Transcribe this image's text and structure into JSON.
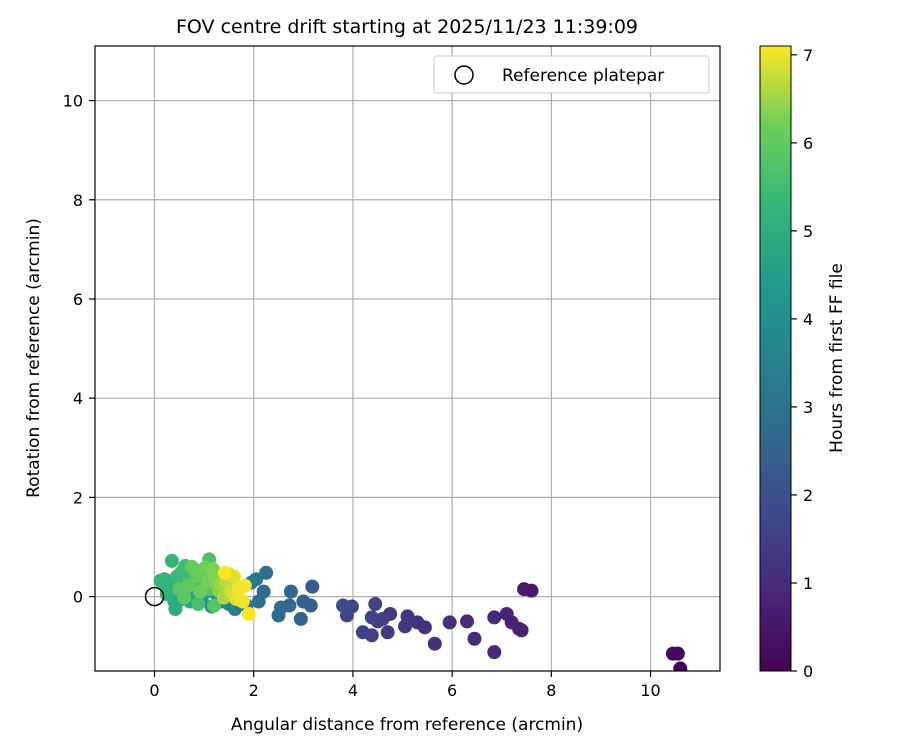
{
  "chart_data": {
    "type": "scatter",
    "title": "FOV centre drift starting at 2025/11/23 11:39:09",
    "xlabel": "Angular distance from reference (arcmin)",
    "ylabel": "Rotation from reference (arcmin)",
    "xlim": [
      -1.2,
      11.4
    ],
    "ylim": [
      -1.5,
      11.1
    ],
    "xticks": [
      0,
      2,
      4,
      6,
      8,
      10
    ],
    "yticks": [
      0,
      2,
      4,
      6,
      8,
      10
    ],
    "grid": true,
    "legend": {
      "position": "top-right",
      "entries": [
        "Reference platepar"
      ]
    },
    "reference_point": {
      "x": 0,
      "y": 0,
      "label": "Reference platepar"
    },
    "colorbar": {
      "label": "Hours from first FF file",
      "min": 0,
      "max": 7.1,
      "ticks": [
        0,
        1,
        2,
        3,
        4,
        5,
        6,
        7
      ],
      "colormap": "viridis"
    },
    "points": [
      {
        "x": 10.6,
        "y": -1.45,
        "t": 0.05
      },
      {
        "x": 10.55,
        "y": -1.15,
        "t": 0.1
      },
      {
        "x": 10.45,
        "y": -1.15,
        "t": 0.15
      },
      {
        "x": 7.6,
        "y": 0.12,
        "t": 0.6
      },
      {
        "x": 7.45,
        "y": 0.15,
        "t": 0.62
      },
      {
        "x": 7.4,
        "y": -0.68,
        "t": 0.7
      },
      {
        "x": 7.35,
        "y": -0.65,
        "t": 0.72
      },
      {
        "x": 7.2,
        "y": -0.52,
        "t": 0.78
      },
      {
        "x": 7.1,
        "y": -0.35,
        "t": 0.82
      },
      {
        "x": 6.85,
        "y": -1.12,
        "t": 0.88
      },
      {
        "x": 6.85,
        "y": -0.42,
        "t": 0.9
      },
      {
        "x": 6.45,
        "y": -0.85,
        "t": 0.95
      },
      {
        "x": 6.3,
        "y": -0.5,
        "t": 1.0
      },
      {
        "x": 5.95,
        "y": -0.52,
        "t": 1.05
      },
      {
        "x": 5.65,
        "y": -0.95,
        "t": 1.1
      },
      {
        "x": 5.45,
        "y": -0.62,
        "t": 1.15
      },
      {
        "x": 5.3,
        "y": -0.52,
        "t": 1.2
      },
      {
        "x": 5.1,
        "y": -0.4,
        "t": 1.25
      },
      {
        "x": 5.05,
        "y": -0.6,
        "t": 1.3
      },
      {
        "x": 4.75,
        "y": -0.35,
        "t": 1.35
      },
      {
        "x": 4.7,
        "y": -0.72,
        "t": 1.4
      },
      {
        "x": 4.6,
        "y": -0.45,
        "t": 1.45
      },
      {
        "x": 4.5,
        "y": -0.5,
        "t": 1.5
      },
      {
        "x": 4.45,
        "y": -0.15,
        "t": 1.52
      },
      {
        "x": 4.38,
        "y": -0.78,
        "t": 1.55
      },
      {
        "x": 4.38,
        "y": -0.42,
        "t": 1.6
      },
      {
        "x": 4.2,
        "y": -0.72,
        "t": 1.65
      },
      {
        "x": 3.98,
        "y": -0.2,
        "t": 1.7
      },
      {
        "x": 3.88,
        "y": -0.38,
        "t": 1.75
      },
      {
        "x": 3.85,
        "y": -0.22,
        "t": 1.8
      },
      {
        "x": 3.8,
        "y": -0.18,
        "t": 1.85
      },
      {
        "x": 3.18,
        "y": 0.2,
        "t": 2.3
      },
      {
        "x": 3.15,
        "y": -0.18,
        "t": 2.4
      },
      {
        "x": 3.0,
        "y": -0.1,
        "t": 2.5
      },
      {
        "x": 2.95,
        "y": -0.45,
        "t": 2.55
      },
      {
        "x": 2.75,
        "y": 0.1,
        "t": 2.6
      },
      {
        "x": 2.72,
        "y": -0.18,
        "t": 2.65
      },
      {
        "x": 2.55,
        "y": -0.22,
        "t": 2.7
      },
      {
        "x": 2.5,
        "y": -0.38,
        "t": 2.75
      },
      {
        "x": 2.25,
        "y": 0.48,
        "t": 2.8
      },
      {
        "x": 2.2,
        "y": 0.1,
        "t": 2.85
      },
      {
        "x": 2.1,
        "y": -0.1,
        "t": 2.9
      },
      {
        "x": 2.05,
        "y": 0.35,
        "t": 3.0
      },
      {
        "x": 1.95,
        "y": 0.28,
        "t": 3.1
      },
      {
        "x": 1.85,
        "y": -0.18,
        "t": 3.2
      },
      {
        "x": 1.62,
        "y": -0.25,
        "t": 3.3
      },
      {
        "x": 1.5,
        "y": -0.15,
        "t": 3.5
      },
      {
        "x": 1.35,
        "y": -0.1,
        "t": 3.7
      },
      {
        "x": 1.25,
        "y": 0.05,
        "t": 3.9
      },
      {
        "x": 1.15,
        "y": -0.2,
        "t": 4.1
      },
      {
        "x": 1.05,
        "y": 0.1,
        "t": 4.3
      },
      {
        "x": 0.95,
        "y": -0.05,
        "t": 4.4
      },
      {
        "x": 0.85,
        "y": 0.2,
        "t": 4.5
      },
      {
        "x": 0.78,
        "y": 0.05,
        "t": 4.6
      },
      {
        "x": 0.72,
        "y": -0.1,
        "t": 4.7
      },
      {
        "x": 0.65,
        "y": 0.15,
        "t": 4.75
      },
      {
        "x": 0.55,
        "y": -0.05,
        "t": 4.8
      },
      {
        "x": 0.48,
        "y": 0.25,
        "t": 4.85
      },
      {
        "x": 0.42,
        "y": -0.25,
        "t": 4.9
      },
      {
        "x": 0.4,
        "y": -0.1,
        "t": 4.95
      },
      {
        "x": 0.35,
        "y": 0.1,
        "t": 5.0
      },
      {
        "x": 0.3,
        "y": 0.2,
        "t": 5.05
      },
      {
        "x": 0.25,
        "y": 0.05,
        "t": 5.1
      },
      {
        "x": 0.2,
        "y": 0.35,
        "t": 5.15
      },
      {
        "x": 0.15,
        "y": 0.28,
        "t": 5.2
      },
      {
        "x": 0.12,
        "y": 0.32,
        "t": 5.25
      },
      {
        "x": 0.35,
        "y": 0.72,
        "t": 5.3
      },
      {
        "x": 0.45,
        "y": 0.4,
        "t": 5.35
      },
      {
        "x": 0.55,
        "y": 0.5,
        "t": 5.4
      },
      {
        "x": 0.62,
        "y": 0.62,
        "t": 5.45
      },
      {
        "x": 0.7,
        "y": 0.35,
        "t": 5.5
      },
      {
        "x": 0.8,
        "y": 0.55,
        "t": 5.55
      },
      {
        "x": 0.88,
        "y": -0.15,
        "t": 5.6
      },
      {
        "x": 0.95,
        "y": 0.3,
        "t": 5.65
      },
      {
        "x": 1.0,
        "y": 0.48,
        "t": 5.7
      },
      {
        "x": 1.1,
        "y": 0.75,
        "t": 5.75
      },
      {
        "x": 1.12,
        "y": 0.15,
        "t": 5.8
      },
      {
        "x": 1.2,
        "y": -0.18,
        "t": 5.85
      },
      {
        "x": 0.5,
        "y": 0.15,
        "t": 5.9
      },
      {
        "x": 0.6,
        "y": -0.02,
        "t": 5.95
      },
      {
        "x": 0.68,
        "y": 0.22,
        "t": 6.0
      },
      {
        "x": 0.75,
        "y": 0.6,
        "t": 6.05
      },
      {
        "x": 0.85,
        "y": 0.42,
        "t": 6.1
      },
      {
        "x": 0.92,
        "y": 0.1,
        "t": 6.15
      },
      {
        "x": 1.02,
        "y": 0.58,
        "t": 6.2
      },
      {
        "x": 1.08,
        "y": 0.3,
        "t": 6.25
      },
      {
        "x": 1.18,
        "y": 0.55,
        "t": 6.3
      },
      {
        "x": 1.25,
        "y": 0.35,
        "t": 6.35
      },
      {
        "x": 1.3,
        "y": 0.12,
        "t": 6.4
      },
      {
        "x": 1.35,
        "y": 0.25,
        "t": 6.5
      },
      {
        "x": 1.4,
        "y": -0.02,
        "t": 6.6
      },
      {
        "x": 1.45,
        "y": 0.3,
        "t": 6.7
      },
      {
        "x": 1.5,
        "y": 0.45,
        "t": 6.8
      },
      {
        "x": 1.55,
        "y": 0.1,
        "t": 6.85
      },
      {
        "x": 1.6,
        "y": 0.4,
        "t": 6.9
      },
      {
        "x": 1.65,
        "y": -0.05,
        "t": 6.95
      },
      {
        "x": 1.7,
        "y": 0.15,
        "t": 7.0
      },
      {
        "x": 1.78,
        "y": -0.1,
        "t": 7.02
      },
      {
        "x": 1.82,
        "y": 0.22,
        "t": 7.05
      },
      {
        "x": 1.9,
        "y": -0.35,
        "t": 7.08
      },
      {
        "x": 1.42,
        "y": 0.48,
        "t": 7.1
      }
    ]
  }
}
